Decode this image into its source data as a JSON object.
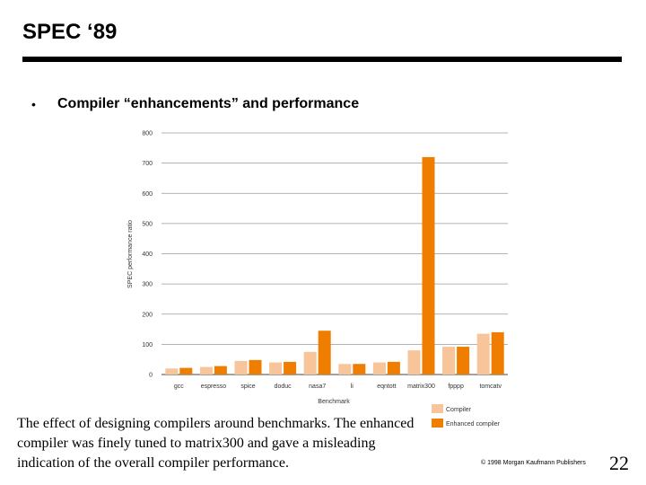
{
  "slide": {
    "title": "SPEC ‘89",
    "bullet": "Compiler “enhancements” and performance",
    "caption": "The effect of designing compilers around benchmarks.  The enhanced compiler was finely tuned to matrix300 and gave a misleading indication of the overall compiler performance.",
    "copyright": "© 1998 Morgan Kaufmann Publishers",
    "page_number": "22"
  },
  "colors": {
    "compiler": "#f8c49a",
    "enhanced": "#ef7d00",
    "grid": "#9a9a9a"
  },
  "chart_data": {
    "type": "bar",
    "categories": [
      "gcc",
      "espresso",
      "spice",
      "doduc",
      "nasa7",
      "li",
      "eqntott",
      "matrix300",
      "fpppp",
      "tomcatv"
    ],
    "series": [
      {
        "name": "Compiler",
        "values": [
          20,
          25,
          45,
          40,
          75,
          35,
          40,
          80,
          92,
          135
        ]
      },
      {
        "name": "Enhanced compiler",
        "values": [
          22,
          28,
          48,
          42,
          145,
          35,
          42,
          720,
          92,
          140
        ]
      }
    ],
    "title": "",
    "xlabel": "Benchmark",
    "ylabel": "SPEC performance ratio",
    "ylim": [
      0,
      800
    ],
    "yticks": [
      "0",
      "100",
      "200",
      "300",
      "400",
      "500",
      "600",
      "700",
      "800"
    ],
    "grid": true,
    "legend": "bottom-right"
  }
}
